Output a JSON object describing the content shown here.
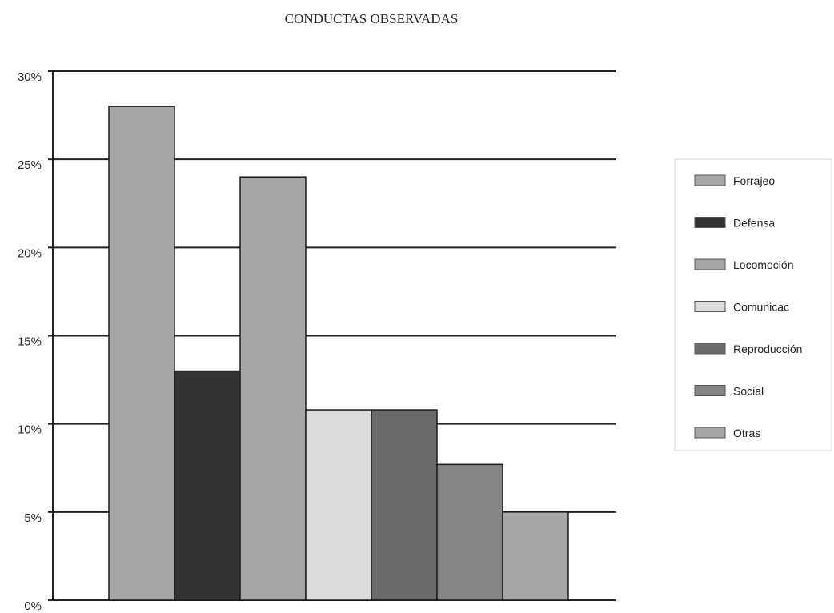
{
  "chart_data": {
    "type": "bar",
    "title": "CONDUCTAS OBSERVADAS",
    "xlabel": "",
    "ylabel": "",
    "ylim": [
      0,
      30
    ],
    "y_ticks": [
      "0%",
      "5%",
      "10%",
      "15%",
      "20%",
      "25%",
      "30%"
    ],
    "y_tick_values": [
      0,
      5,
      10,
      15,
      20,
      25,
      30
    ],
    "grid": true,
    "legend_position": "right",
    "series": [
      {
        "name": "Forrajeo",
        "value": 28,
        "color": "#a6a6a6"
      },
      {
        "name": "Defensa",
        "value": 13,
        "color": "#333333"
      },
      {
        "name": "Locomoción",
        "value": 24,
        "color": "#a6a6a6"
      },
      {
        "name": "Comunicac",
        "value": 10.8,
        "color": "#dcdcdc"
      },
      {
        "name": "Reproducción",
        "value": 10.8,
        "color": "#6b6b6b"
      },
      {
        "name": "Social",
        "value": 7.7,
        "color": "#858585"
      },
      {
        "name": "Otras",
        "value": 5,
        "color": "#a6a6a6"
      }
    ]
  }
}
